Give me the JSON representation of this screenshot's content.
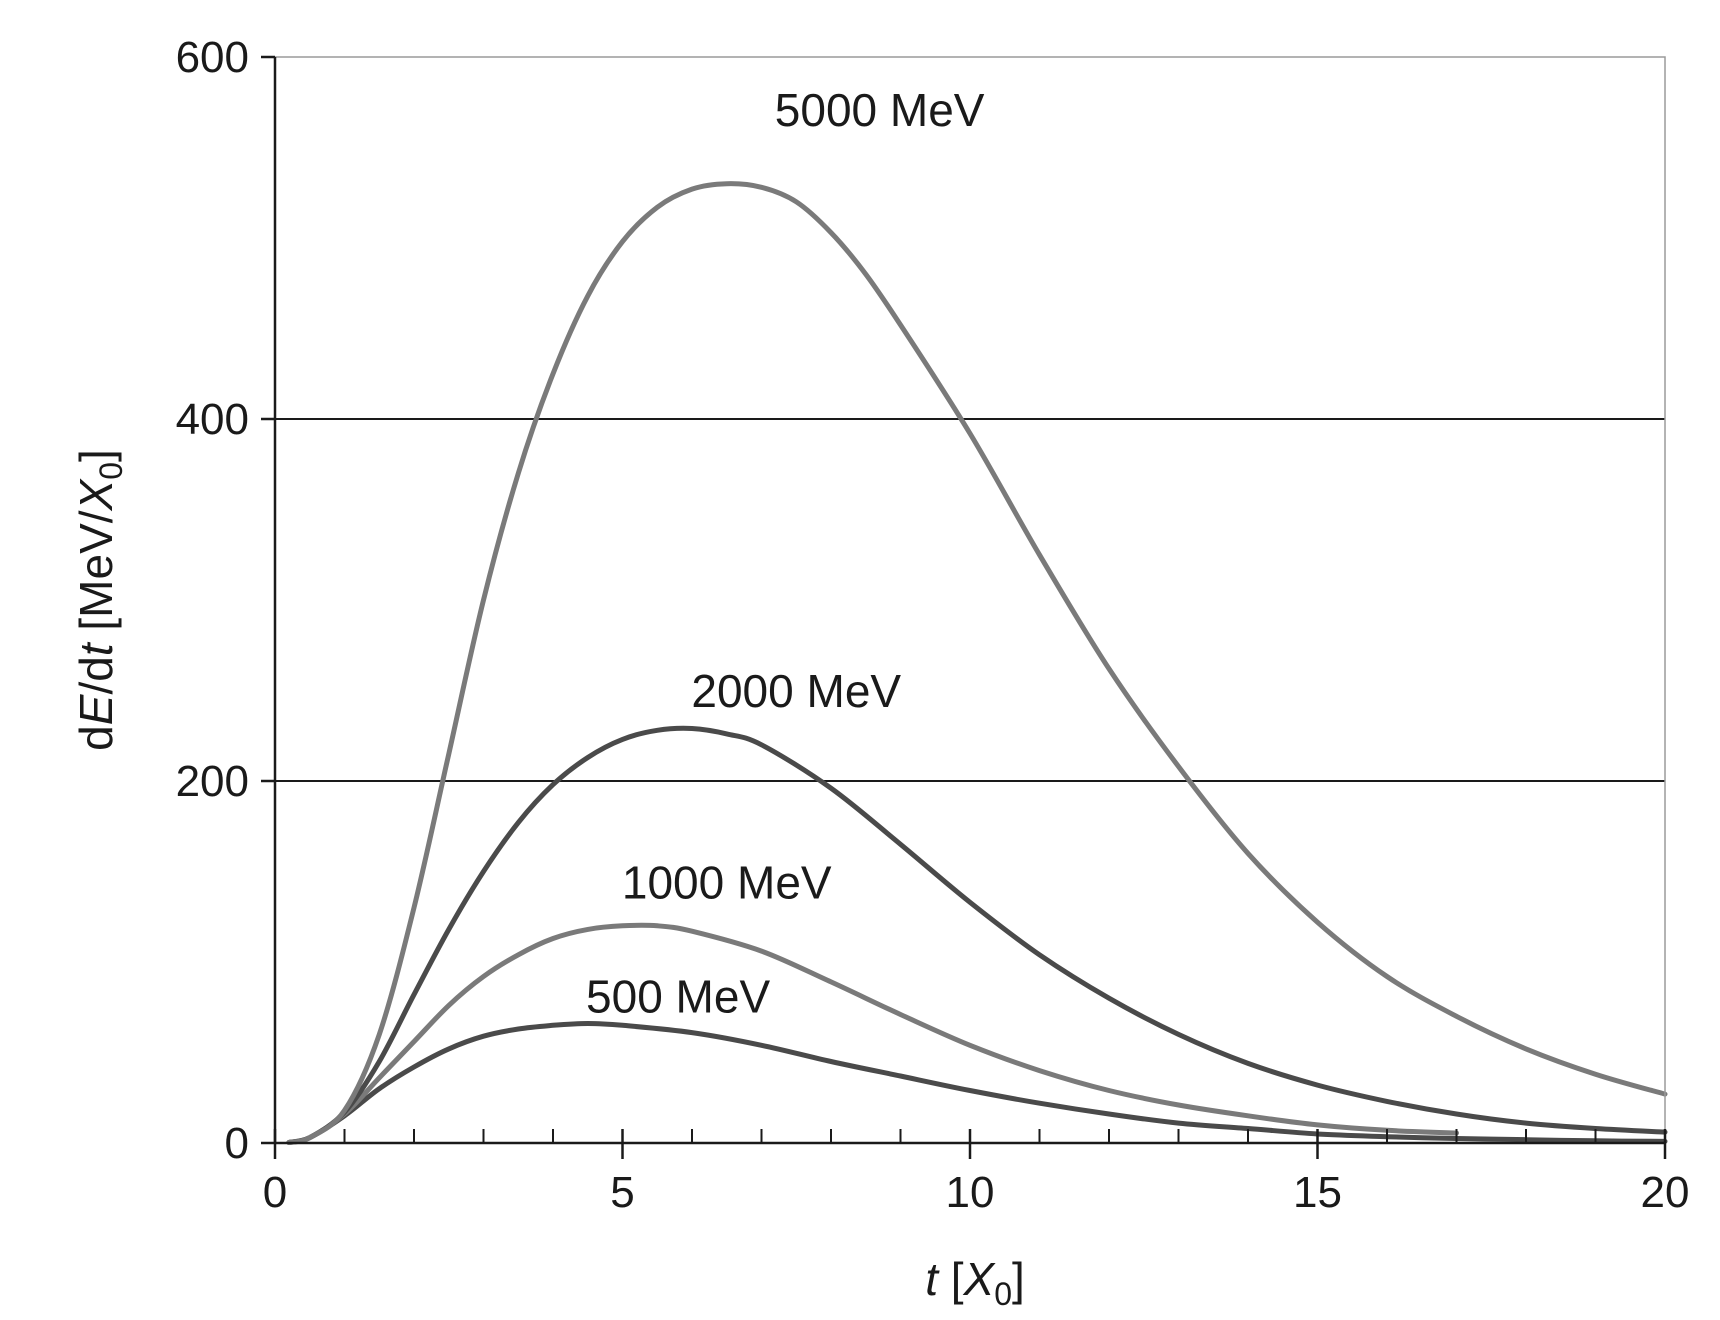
{
  "chart_data": {
    "type": "line",
    "xlabel": "t [X0]",
    "ylabel": "dE/dt [MeV/X0]",
    "xlim": [
      0,
      20
    ],
    "ylim": [
      0,
      600
    ],
    "x_ticks": [
      0,
      5,
      10,
      15,
      20
    ],
    "x_tick_labels": [
      "0",
      "5",
      "10",
      "15",
      "20"
    ],
    "x_minor_step": 1,
    "y_ticks": [
      0,
      200,
      400,
      600
    ],
    "y_tick_labels": [
      "0",
      "200",
      "400",
      "600"
    ],
    "grid": "horizontal at 200 and 400",
    "legend": "none (labels placed above curve peaks)",
    "colors": {
      "axis": "#1a1a1a",
      "curve_dark": "#4a4a4a",
      "curve_light": "#7a7a7a",
      "grid": "#1a1a1a"
    },
    "series": [
      {
        "name": "500 MeV",
        "color": "#4a4a4a",
        "x_end": 20,
        "x": [
          0.2,
          0.5,
          1,
          1.5,
          2,
          2.5,
          3,
          3.5,
          4,
          4.5,
          5,
          6,
          7,
          8,
          9,
          10,
          11,
          12,
          13,
          14,
          15,
          16,
          17,
          18,
          19,
          20
        ],
        "y": [
          0.3,
          3,
          15,
          30,
          42,
          52,
          59,
          63,
          65,
          66,
          65,
          61,
          54,
          45,
          37,
          29,
          22,
          16,
          11,
          8,
          5,
          3.5,
          2.5,
          1.8,
          1.2,
          0.9
        ]
      },
      {
        "name": "1000 MeV",
        "color": "#7a7a7a",
        "x_end": 17,
        "x": [
          0.2,
          0.5,
          1,
          1.5,
          2,
          2.5,
          3,
          3.5,
          4,
          4.5,
          5,
          5.5,
          6,
          7,
          8,
          9,
          10,
          11,
          12,
          13,
          14,
          15,
          16,
          17
        ],
        "y": [
          0.3,
          3,
          16,
          36,
          56,
          76,
          92,
          104,
          113,
          118,
          120,
          120,
          117,
          106,
          89,
          71,
          54,
          40,
          29,
          21,
          15,
          10,
          7,
          5.5
        ]
      },
      {
        "name": "2000 MeV",
        "color": "#4a4a4a",
        "x_end": 20,
        "x": [
          0.2,
          0.5,
          1,
          1.5,
          2,
          2.5,
          3,
          3.5,
          4,
          4.5,
          5,
          5.5,
          6,
          6.5,
          7,
          8,
          9,
          10,
          11,
          12,
          13,
          14,
          15,
          16,
          17,
          18,
          19,
          20
        ],
        "y": [
          0.3,
          3,
          17,
          45,
          82,
          118,
          150,
          177,
          198,
          213,
          223,
          228,
          229,
          226,
          220,
          196,
          165,
          133,
          104,
          80,
          60,
          44,
          32,
          23,
          16,
          11,
          8,
          6
        ]
      },
      {
        "name": "5000 MeV",
        "color": "#7a7a7a",
        "x_end": 20,
        "x": [
          0.2,
          0.5,
          1,
          1.5,
          2,
          2.5,
          3,
          3.5,
          4,
          4.5,
          5,
          5.5,
          6,
          6.5,
          7,
          7.5,
          8,
          8.5,
          9,
          10,
          11,
          12,
          13,
          14,
          15,
          16,
          17,
          18,
          19,
          20
        ],
        "y": [
          0.3,
          3,
          18,
          60,
          130,
          215,
          300,
          370,
          425,
          468,
          498,
          517,
          527,
          530,
          528,
          520,
          503,
          480,
          452,
          392,
          325,
          262,
          208,
          160,
          122,
          92,
          70,
          52,
          38,
          27
        ]
      }
    ],
    "annotations": [
      {
        "text": "5000 MeV",
        "x": 8.7,
        "y": 562
      },
      {
        "text": "2000 MeV",
        "x": 7.5,
        "y": 241
      },
      {
        "text": "1000 MeV",
        "x": 6.5,
        "y": 135
      },
      {
        "text": "500 MeV",
        "x": 5.8,
        "y": 72
      }
    ]
  }
}
